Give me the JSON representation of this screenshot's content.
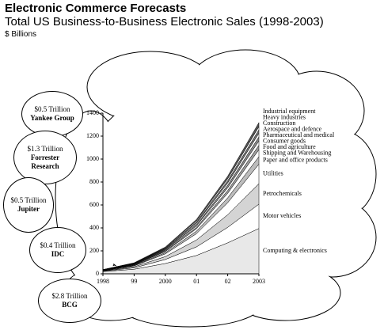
{
  "chart_data": {
    "type": "stacked-area",
    "title": "Electronic Commerce Forecasts",
    "subtitle": "Total US Business-to-Business Electronic Sales (1998-2003)",
    "y_label": "$ Billions",
    "categories": [
      "1998",
      "99",
      "2000",
      "01",
      "02",
      "2003"
    ],
    "ylim": [
      0,
      1400
    ],
    "yticks": [
      0,
      200,
      400,
      600,
      800,
      1000,
      1200,
      1400
    ],
    "series": [
      {
        "name": "Computing & electronics",
        "color": "#e8e8e8",
        "values": [
          20,
          40,
          90,
          160,
          270,
          395
        ]
      },
      {
        "name": "Motor vehicles",
        "color": "#ffffff",
        "values": [
          3,
          12,
          35,
          75,
          135,
          212
        ]
      },
      {
        "name": "Petrochemicals",
        "color": "#d4d4d4",
        "values": [
          3,
          9,
          25,
          60,
          110,
          178
        ]
      },
      {
        "name": "Utilities",
        "color": "#ffffff",
        "values": [
          2,
          8,
          24,
          55,
          105,
          171
        ]
      },
      {
        "name": "Paper and office products",
        "color": "#bdbdbd",
        "values": [
          1,
          4,
          10,
          22,
          42,
          65
        ]
      },
      {
        "name": "Shipping and Warehousing",
        "color": "#ffffff",
        "values": [
          1,
          4,
          10,
          21,
          40,
          61
        ]
      },
      {
        "name": "Food and agriculture",
        "color": "#9e9e9e",
        "values": [
          1,
          3,
          6,
          13,
          24,
          38
        ]
      },
      {
        "name": "Consumer goods",
        "color": "#ffffff",
        "values": [
          1,
          3,
          6,
          13,
          24,
          38
        ]
      },
      {
        "name": "Pharmaceutical and medical",
        "color": "#8a8a8a",
        "values": [
          1,
          3,
          6,
          12,
          22,
          35
        ]
      },
      {
        "name": "Aerospace and defence",
        "color": "#ffffff",
        "values": [
          1,
          3,
          5,
          11,
          20,
          32
        ]
      },
      {
        "name": "Construction",
        "color": "#777777",
        "values": [
          1,
          2,
          5,
          10,
          19,
          30
        ]
      },
      {
        "name": "Heavy industries",
        "color": "#ffffff",
        "values": [
          1,
          2,
          5,
          10,
          18,
          28
        ]
      },
      {
        "name": "Industrial equipment",
        "color": "#555555",
        "values": [
          1,
          3,
          6,
          12,
          22,
          35
        ]
      }
    ],
    "annotations": [
      {
        "amount": "$0.5 Trillion",
        "source": "Yankee Group"
      },
      {
        "amount": "$1.3 Trillion",
        "source": "Forrester Research"
      },
      {
        "amount": "$0.5 Trillion",
        "source": "Jupiter"
      },
      {
        "amount": "$0.4 Trillion",
        "source": "IDC"
      },
      {
        "amount": "$2.8 Trillion",
        "source": "BCG"
      }
    ]
  }
}
